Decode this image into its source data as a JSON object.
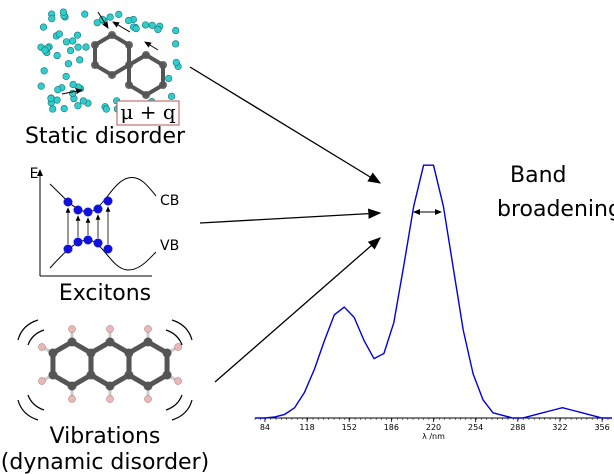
{
  "static_disorder": {
    "label": "Static disorder",
    "box_label": "μ + q"
  },
  "excitons": {
    "label": "Excitons",
    "axis_label": "E",
    "cb_label": "CB",
    "vb_label": "VB"
  },
  "vibrations": {
    "label": "Vibrations",
    "sublabel": "(dynamic disorder)"
  },
  "result": {
    "lines": [
      "Band",
      "broadening"
    ]
  },
  "chart_data": {
    "type": "line",
    "x": [
      76,
      84,
      92,
      100,
      108,
      116,
      124,
      132,
      140,
      148,
      156,
      164,
      172,
      180,
      188,
      196,
      204,
      212,
      220,
      228,
      236,
      244,
      252,
      260,
      268,
      276,
      284,
      292,
      300,
      308,
      316,
      324,
      332,
      340,
      348,
      356,
      364
    ],
    "values": [
      0,
      0,
      0.004,
      0.014,
      0.04,
      0.1,
      0.19,
      0.3,
      0.4,
      0.43,
      0.39,
      0.3,
      0.23,
      0.25,
      0.37,
      0.59,
      0.82,
      0.98,
      0.98,
      0.82,
      0.58,
      0.34,
      0.17,
      0.07,
      0.02,
      0.01,
      0,
      0,
      0.01,
      0.02,
      0.03,
      0.04,
      0.03,
      0.02,
      0.01,
      0,
      0
    ],
    "color": "#0000dd",
    "xlim": [
      76,
      364
    ],
    "ylim": [
      0,
      1
    ],
    "xticks": [
      84,
      118,
      152,
      186,
      220,
      254,
      288,
      322,
      356
    ],
    "xlabel": "λ /nm"
  }
}
